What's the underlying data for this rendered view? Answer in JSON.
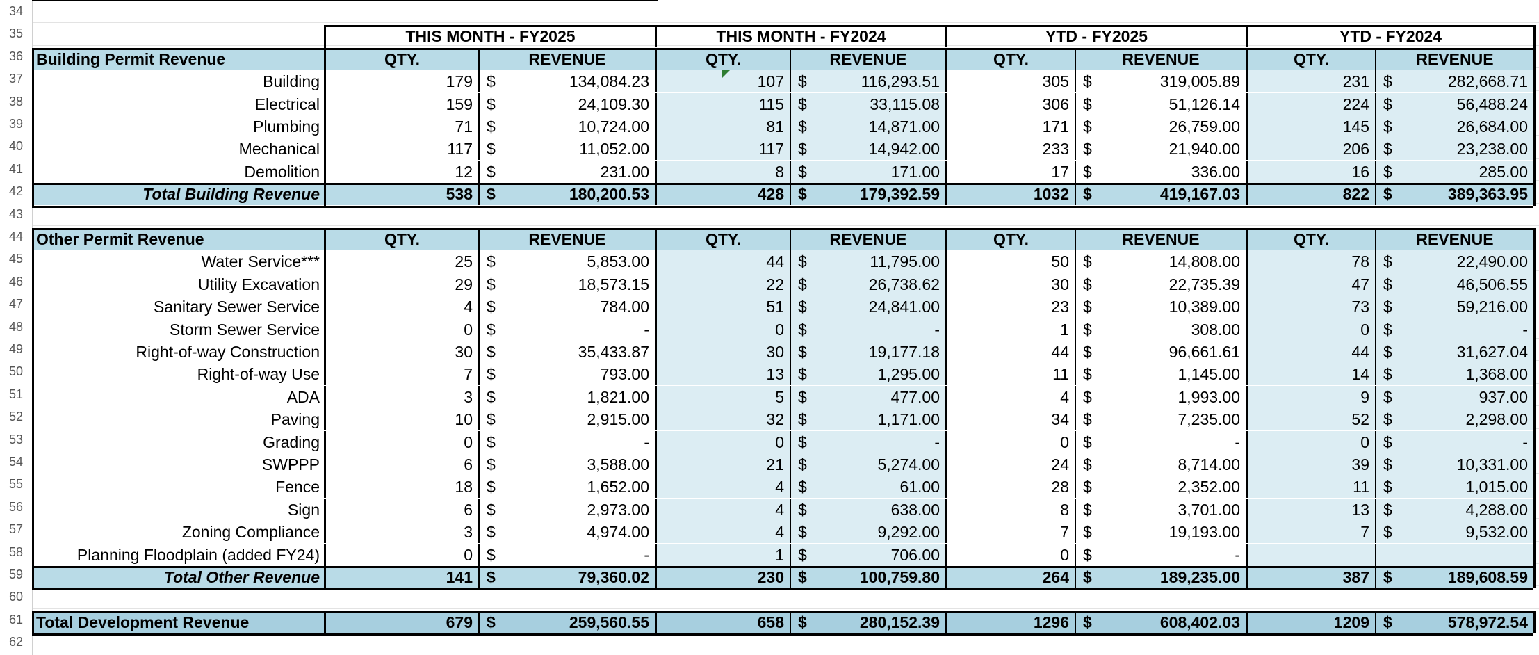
{
  "colors": {
    "header_fill": "#b9dbe7",
    "total_fill": "#aed3e2",
    "light_fill": "#dcedf3",
    "grand_fill": "#a7cfdf",
    "row_header_text": "#555555"
  },
  "row_numbers": [
    "34",
    "35",
    "36",
    "37",
    "38",
    "39",
    "40",
    "41",
    "42",
    "43",
    "44",
    "45",
    "46",
    "47",
    "48",
    "49",
    "50",
    "51",
    "52",
    "53",
    "54",
    "55",
    "56",
    "57",
    "58",
    "59",
    "60",
    "61",
    "62"
  ],
  "groups": [
    "THIS MONTH - FY2025",
    "THIS MONTH - FY2024",
    "YTD - FY2025",
    "YTD - FY2024"
  ],
  "col_labels": {
    "qty": "QTY.",
    "revenue": "REVENUE"
  },
  "dollar_sign": "$",
  "building": {
    "header": "Building Permit Revenue",
    "rows": [
      {
        "label": "Building",
        "values": [
          [
            "179",
            "134,084.23"
          ],
          [
            "107",
            "116,293.51"
          ],
          [
            "305",
            "319,005.89"
          ],
          [
            "231",
            "282,668.71"
          ]
        ]
      },
      {
        "label": "Electrical",
        "values": [
          [
            "159",
            "24,109.30"
          ],
          [
            "115",
            "33,115.08"
          ],
          [
            "306",
            "51,126.14"
          ],
          [
            "224",
            "56,488.24"
          ]
        ]
      },
      {
        "label": "Plumbing",
        "values": [
          [
            "71",
            "10,724.00"
          ],
          [
            "81",
            "14,871.00"
          ],
          [
            "171",
            "26,759.00"
          ],
          [
            "145",
            "26,684.00"
          ]
        ]
      },
      {
        "label": "Mechanical",
        "values": [
          [
            "117",
            "11,052.00"
          ],
          [
            "117",
            "14,942.00"
          ],
          [
            "233",
            "21,940.00"
          ],
          [
            "206",
            "23,238.00"
          ]
        ]
      },
      {
        "label": "Demolition",
        "values": [
          [
            "12",
            "231.00"
          ],
          [
            "8",
            "171.00"
          ],
          [
            "17",
            "336.00"
          ],
          [
            "16",
            "285.00"
          ]
        ]
      }
    ],
    "total": {
      "label": "Total Building Revenue",
      "values": [
        [
          "538",
          "180,200.53"
        ],
        [
          "428",
          "179,392.59"
        ],
        [
          "1032",
          "419,167.03"
        ],
        [
          "822",
          "389,363.95"
        ]
      ]
    }
  },
  "other": {
    "header": "Other Permit Revenue",
    "rows": [
      {
        "label": "Water Service***",
        "values": [
          [
            "25",
            "5,853.00"
          ],
          [
            "44",
            "11,795.00"
          ],
          [
            "50",
            "14,808.00"
          ],
          [
            "78",
            "22,490.00"
          ]
        ]
      },
      {
        "label": "Utility Excavation",
        "values": [
          [
            "29",
            "18,573.15"
          ],
          [
            "22",
            "26,738.62"
          ],
          [
            "30",
            "22,735.39"
          ],
          [
            "47",
            "46,506.55"
          ]
        ]
      },
      {
        "label": "Sanitary Sewer Service",
        "values": [
          [
            "4",
            "784.00"
          ],
          [
            "51",
            "24,841.00"
          ],
          [
            "23",
            "10,389.00"
          ],
          [
            "73",
            "59,216.00"
          ]
        ]
      },
      {
        "label": "Storm Sewer Service",
        "values": [
          [
            "0",
            "-"
          ],
          [
            "0",
            "-"
          ],
          [
            "1",
            "308.00"
          ],
          [
            "0",
            "-"
          ]
        ]
      },
      {
        "label": "Right-of-way Construction",
        "values": [
          [
            "30",
            "35,433.87"
          ],
          [
            "30",
            "19,177.18"
          ],
          [
            "44",
            "96,661.61"
          ],
          [
            "44",
            "31,627.04"
          ]
        ]
      },
      {
        "label": "Right-of-way Use",
        "values": [
          [
            "7",
            "793.00"
          ],
          [
            "13",
            "1,295.00"
          ],
          [
            "11",
            "1,145.00"
          ],
          [
            "14",
            "1,368.00"
          ]
        ]
      },
      {
        "label": "ADA",
        "values": [
          [
            "3",
            "1,821.00"
          ],
          [
            "5",
            "477.00"
          ],
          [
            "4",
            "1,993.00"
          ],
          [
            "9",
            "937.00"
          ]
        ]
      },
      {
        "label": "Paving",
        "values": [
          [
            "10",
            "2,915.00"
          ],
          [
            "32",
            "1,171.00"
          ],
          [
            "34",
            "7,235.00"
          ],
          [
            "52",
            "2,298.00"
          ]
        ]
      },
      {
        "label": "Grading",
        "values": [
          [
            "0",
            "-"
          ],
          [
            "0",
            "-"
          ],
          [
            "0",
            "-"
          ],
          [
            "0",
            "-"
          ]
        ]
      },
      {
        "label": "SWPPP",
        "values": [
          [
            "6",
            "3,588.00"
          ],
          [
            "21",
            "5,274.00"
          ],
          [
            "24",
            "8,714.00"
          ],
          [
            "39",
            "10,331.00"
          ]
        ]
      },
      {
        "label": "Fence",
        "values": [
          [
            "18",
            "1,652.00"
          ],
          [
            "4",
            "61.00"
          ],
          [
            "28",
            "2,352.00"
          ],
          [
            "11",
            "1,015.00"
          ]
        ]
      },
      {
        "label": "Sign",
        "values": [
          [
            "6",
            "2,973.00"
          ],
          [
            "4",
            "638.00"
          ],
          [
            "8",
            "3,701.00"
          ],
          [
            "13",
            "4,288.00"
          ]
        ]
      },
      {
        "label": "Zoning Compliance",
        "values": [
          [
            "3",
            "4,974.00"
          ],
          [
            "4",
            "9,292.00"
          ],
          [
            "7",
            "19,193.00"
          ],
          [
            "7",
            "9,532.00"
          ]
        ]
      },
      {
        "label": "Planning Floodplain (added FY24)",
        "values": [
          [
            "0",
            "-"
          ],
          [
            "1",
            "706.00"
          ],
          [
            "0",
            "-"
          ],
          [
            "",
            ""
          ]
        ]
      }
    ],
    "total": {
      "label": "Total Other Revenue",
      "values": [
        [
          "141",
          "79,360.02"
        ],
        [
          "230",
          "100,759.80"
        ],
        [
          "264",
          "189,235.00"
        ],
        [
          "387",
          "189,608.59"
        ]
      ]
    }
  },
  "grand_total": {
    "label": "Total Development Revenue",
    "values": [
      [
        "679",
        "259,560.55"
      ],
      [
        "658",
        "280,152.39"
      ],
      [
        "1296",
        "608,402.03"
      ],
      [
        "1209",
        "578,972.54"
      ]
    ]
  }
}
